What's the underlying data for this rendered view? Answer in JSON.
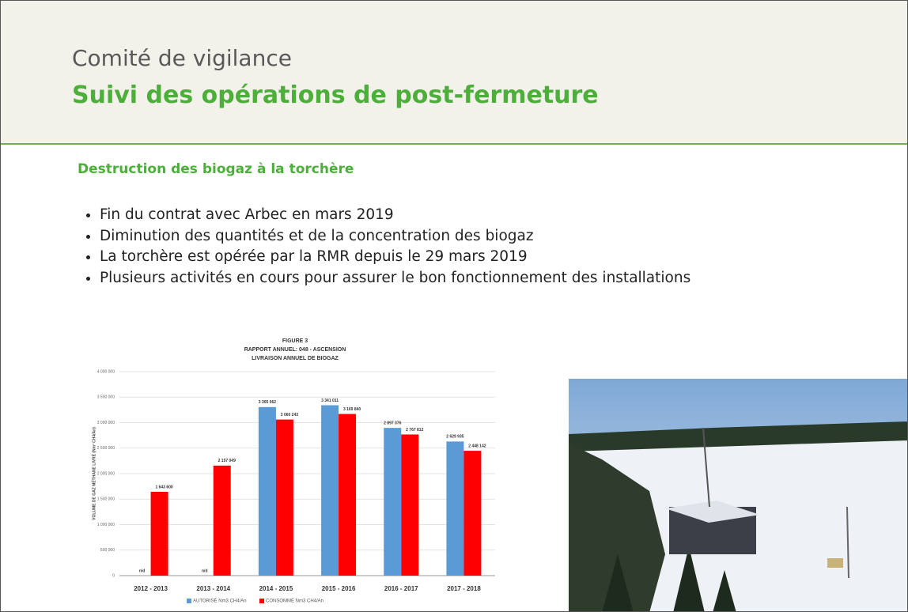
{
  "header": {
    "title": "Comité de vigilance",
    "subtitle": "Suivi des opérations de post-fermeture"
  },
  "section": {
    "heading": "Destruction des biogaz à la torchère",
    "bullets": [
      "Fin du contrat avec Arbec en mars 2019",
      "Diminution des quantités et de la concentration des biogaz",
      "La torchère est opérée par la RMR depuis le 29 mars 2019",
      "Plusieurs activités en cours pour assurer le bon fonctionnement des installations"
    ]
  },
  "chart_data": {
    "type": "bar",
    "title": [
      "FIGURE 3",
      "RAPPORT ANNUEL: 048 - ASCENSION",
      "LIVRAISON ANNUEL DE BIOGAZ"
    ],
    "y_label": "VOLUME DE GAZ MÉTHANE LIVRÉ (Nm³ CH4/An)",
    "categories": [
      "2012 - 2013",
      "2013 - 2014",
      "2014 - 2015",
      "2015 - 2016",
      "2016 - 2017",
      "2017 - 2018"
    ],
    "series": [
      {
        "name": "AUTORISÉ Nm3 CH4/An",
        "color": "#5b9bd5",
        "values": [
          null,
          null,
          3305062,
          3341011,
          2897376,
          2629935
        ],
        "value_labels": [
          "n/d",
          "n/d",
          "3 305 062",
          "3 341 011",
          "2 897 376",
          "2 629 935"
        ]
      },
      {
        "name": "CONSOMMÉ Nm3 CH4/An",
        "color": "#ff0000",
        "values": [
          1643600,
          2157049,
          3060243,
          3169840,
          2767812,
          2448142
        ],
        "value_labels": [
          "1 643 600",
          "2 157 049",
          "3 060 243",
          "3 169 840",
          "2 767 812",
          "2 448 142"
        ]
      }
    ],
    "ylim": [
      0,
      4000000
    ],
    "yticks": [
      0,
      {
        "value": 500000,
        "label": "500 000"
      },
      {
        "value": 1000000,
        "label": "1 000 000"
      },
      {
        "value": 1500000,
        "label": "1 500 000"
      },
      {
        "value": 2000000,
        "label": "2 000 000"
      },
      {
        "value": 2500000,
        "label": "2 500 000"
      },
      {
        "value": 3000000,
        "label": "3 000 000"
      },
      {
        "value": 3500000,
        "label": "3 500 000"
      },
      {
        "value": 4000000,
        "label": "4 000 000"
      }
    ],
    "grid": true,
    "legend": "bottom"
  }
}
